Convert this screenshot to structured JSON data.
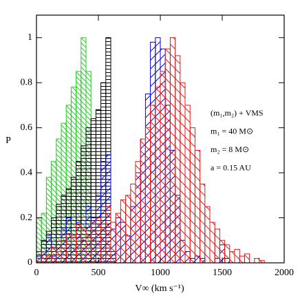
{
  "chart_data": {
    "type": "histogram",
    "xlabel": "V∞ (km s⁻¹)",
    "ylabel": "P",
    "annotations": [
      "(m₁,m₂) + VMS",
      "m₁ = 40 M⊙",
      "m₂ = 8 M⊙",
      "a = 0.15 AU"
    ],
    "bins": [
      0,
      40,
      80,
      120,
      160,
      200,
      240,
      280,
      320,
      360,
      400,
      440,
      480,
      520,
      560,
      600,
      640,
      680,
      720,
      760,
      800,
      840,
      880,
      920,
      960,
      1000,
      1040,
      1080,
      1120,
      1160,
      1200,
      1240,
      1280,
      1320,
      1360,
      1400,
      1440,
      1480,
      1520,
      1560,
      1600,
      1640,
      1680,
      1720,
      1760,
      1800,
      1840,
      1880,
      1920,
      1960,
      2000
    ],
    "series": [
      {
        "color": "#22cc22",
        "hatch": "forward",
        "values": [
          0.2,
          0.22,
          0.38,
          0.45,
          0.55,
          0.62,
          0.7,
          0.78,
          0.85,
          1.0,
          0.85,
          0.1,
          0,
          0,
          0,
          0,
          0,
          0,
          0,
          0,
          0,
          0,
          0,
          0,
          0,
          0,
          0,
          0,
          0,
          0,
          0,
          0,
          0,
          0,
          0,
          0,
          0,
          0,
          0,
          0,
          0,
          0,
          0,
          0,
          0,
          0,
          0,
          0,
          0,
          0
        ]
      },
      {
        "color": "#000000",
        "hatch": "horizontal",
        "values": [
          0.05,
          0.1,
          0.14,
          0.2,
          0.26,
          0.3,
          0.33,
          0.38,
          0.45,
          0.52,
          0.6,
          0.64,
          0.68,
          0.8,
          1.0,
          0.05,
          0,
          0,
          0,
          0,
          0,
          0,
          0,
          0,
          0,
          0,
          0,
          0,
          0,
          0,
          0,
          0,
          0,
          0,
          0,
          0,
          0,
          0,
          0,
          0,
          0,
          0,
          0,
          0,
          0,
          0,
          0,
          0,
          0,
          0
        ]
      },
      {
        "color": "#0000dd",
        "hatch": "back",
        "values": [
          0.03,
          0.05,
          0.12,
          0.03,
          0.08,
          0.15,
          0.2,
          0.08,
          0.18,
          0.1,
          0.25,
          0.2,
          0.3,
          0.45,
          0.48,
          0.15,
          0.2,
          0.18,
          0.12,
          0.25,
          0.4,
          0.55,
          0.75,
          0.98,
          1.0,
          0.95,
          0.7,
          0.5,
          0.3,
          0.1,
          0.05,
          0.02,
          0.03,
          0.02,
          0,
          0,
          0.02,
          0.08,
          0.02,
          0,
          0,
          0,
          0,
          0,
          0,
          0,
          0,
          0,
          0,
          0
        ]
      },
      {
        "color": "#ee1111",
        "hatch": "forward",
        "values": [
          0.02,
          0.05,
          0.03,
          0.07,
          0.05,
          0.1,
          0.13,
          0.12,
          0.17,
          0.15,
          0.12,
          0.18,
          0.2,
          0.15,
          0.25,
          0.18,
          0.22,
          0.28,
          0.3,
          0.35,
          0.45,
          0.55,
          0.6,
          0.7,
          0.78,
          0.85,
          0.95,
          1.0,
          0.92,
          0.8,
          0.7,
          0.6,
          0.5,
          0.35,
          0.25,
          0.18,
          0.15,
          0.1,
          0.08,
          0.05,
          0.06,
          0.03,
          0.04,
          0,
          0.02,
          0.01,
          0,
          0,
          0,
          0
        ]
      }
    ],
    "xlim": [
      0,
      2000
    ],
    "ylim": [
      0,
      1.1
    ],
    "xticks": [
      0,
      500,
      1000,
      1500,
      2000
    ],
    "yticks": [
      0,
      0.2,
      0.4,
      0.6,
      0.8,
      1
    ]
  }
}
